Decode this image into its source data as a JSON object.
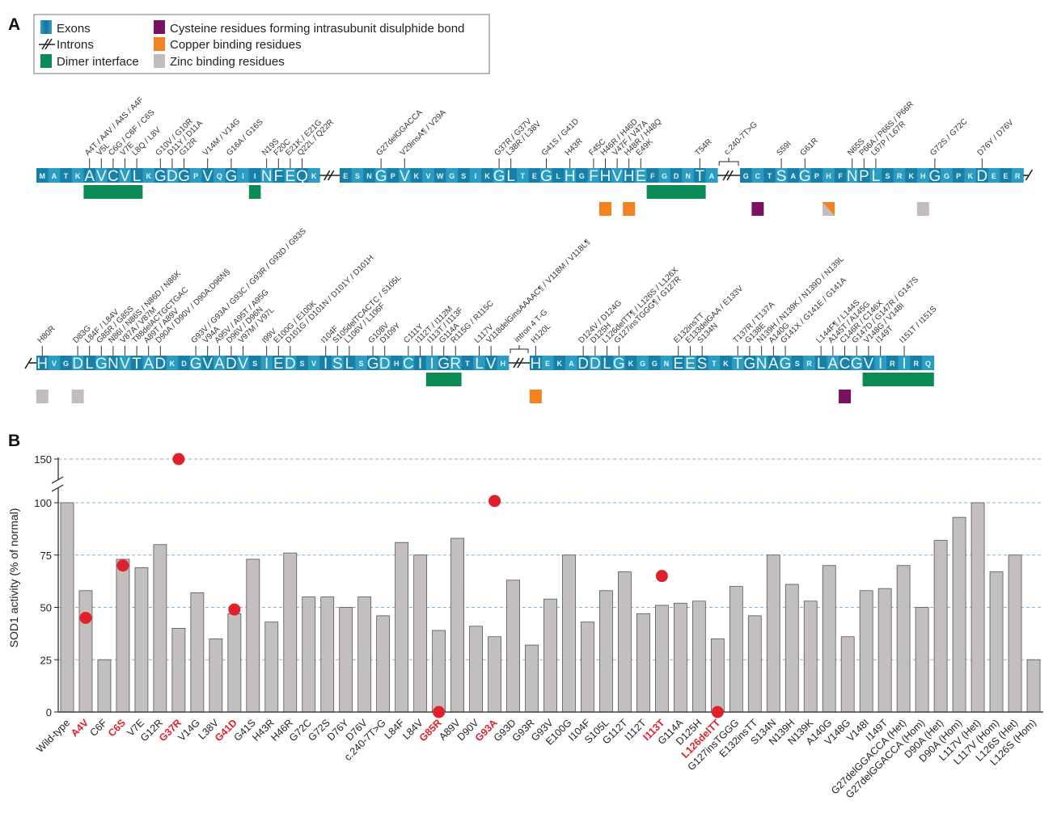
{
  "panel_a": {
    "label": "A",
    "legend": [
      {
        "label": "Exons",
        "color": "#1b86ad",
        "icon": "exon-swatch"
      },
      {
        "label": "Introns",
        "color": "#222222",
        "icon": "intron-break-icon"
      },
      {
        "label": "Dimer interface",
        "color": "#0a8a55",
        "icon": "dimer-swatch"
      },
      {
        "label": "Cysteine residues forming intrasubunit disulphide bond",
        "color": "#7a1060",
        "icon": "cysteine-swatch"
      },
      {
        "label": "Copper binding residues",
        "color": "#f58220",
        "icon": "copper-swatch"
      },
      {
        "label": "Zinc binding residues",
        "color": "#c3bcbc",
        "icon": "zinc-swatch"
      }
    ],
    "exons": [
      {
        "start": 0,
        "sequence": "MATKAVCVLKGDGPVQGIINFEQK",
        "annotations": [
          {
            "pos": 4,
            "text": "A4T / A4V / A4S / A4F"
          },
          {
            "pos": 5,
            "text": "V5L"
          },
          {
            "pos": 6,
            "text": "C6G / C6F / C6S"
          },
          {
            "pos": 7,
            "text": "V7E"
          },
          {
            "pos": 8,
            "text": "L8Q / L8V"
          },
          {
            "pos": 10,
            "text": "G10V / G10R"
          },
          {
            "pos": 11,
            "text": "D11Y / D11A"
          },
          {
            "pos": 12,
            "text": "G12R"
          },
          {
            "pos": 14,
            "text": "V14M / V14G"
          },
          {
            "pos": 16,
            "text": "G16A / G16S"
          },
          {
            "pos": 19,
            "text": "N19S"
          },
          {
            "pos": 20,
            "text": "F20C"
          },
          {
            "pos": 21,
            "text": "E21K / E21G"
          },
          {
            "pos": 22,
            "text": "Q22L / Q22R"
          }
        ]
      },
      {
        "start": 24,
        "sequence": "ESNGPVKVWGSIKGLTEGLHGFHVHEFGDNTA",
        "annotations": [
          {
            "pos": 27,
            "text": "G27delGGACCA"
          },
          {
            "pos": 29,
            "text": "V29insA¶ / V29A"
          },
          {
            "pos": 37,
            "text": "G37R / G37V"
          },
          {
            "pos": 38,
            "text": "L38R / L38V"
          },
          {
            "pos": 41,
            "text": "G41S / G41D"
          },
          {
            "pos": 43,
            "text": "H43R"
          },
          {
            "pos": 45,
            "text": "F45C"
          },
          {
            "pos": 46,
            "text": "H46R / H46D"
          },
          {
            "pos": 47,
            "text": "V47F / V47A"
          },
          {
            "pos": 48,
            "text": "H48R / H48Q"
          },
          {
            "pos": 49,
            "text": "E49K"
          },
          {
            "pos": 54,
            "text": "T54R"
          }
        ]
      },
      {
        "start": 56,
        "sequence": "GCTSAGPHFNPLSRKHGGPKDEER",
        "annotations": [
          {
            "pos": 59,
            "text": "S59I"
          },
          {
            "pos": 61,
            "text": "G61R"
          },
          {
            "pos": 65,
            "text": "N65S"
          },
          {
            "pos": 66,
            "text": "P66A / P66S / P66R"
          },
          {
            "pos": 67,
            "text": "L67P / L67R"
          },
          {
            "pos": 72,
            "text": "G72S / G72C"
          },
          {
            "pos": 76,
            "text": "D76Y / D76V"
          }
        ]
      },
      {
        "start": 80,
        "sequence": "HVGDLGNVTADKDGVADVSIEDSVISLSGDHCIIGRTLVH",
        "annotations": [
          {
            "pos": 80,
            "text": "H80R"
          },
          {
            "pos": 83,
            "text": "D83G"
          },
          {
            "pos": 84,
            "text": "L84F / L84V"
          },
          {
            "pos": 85,
            "text": "G85R / G85S"
          },
          {
            "pos": 86,
            "text": "N86I / N86S / N86D / N86K"
          },
          {
            "pos": 87,
            "text": "V87A / V87M"
          },
          {
            "pos": 88,
            "text": "T88delACTGCTGAC"
          },
          {
            "pos": 89,
            "text": "A89T / A89V"
          },
          {
            "pos": 90,
            "text": "D90A / D90V / D90A;D96N§"
          },
          {
            "pos": 93,
            "text": "G93V / G93A / G93C / G93R / G93D / G93S"
          },
          {
            "pos": 94,
            "text": "V94A"
          },
          {
            "pos": 95,
            "text": "A95V / A95T / A95G"
          },
          {
            "pos": 96,
            "text": "D96V / D96N"
          },
          {
            "pos": 97,
            "text": "V97M / V97L"
          },
          {
            "pos": 99,
            "text": "I99V"
          },
          {
            "pos": 100,
            "text": "E100G / E100K"
          },
          {
            "pos": 101,
            "text": "D101G / D101N / D101Y / D101H"
          },
          {
            "pos": 104,
            "text": "I104F"
          },
          {
            "pos": 105,
            "text": "S105delTCACTC / S105L"
          },
          {
            "pos": 106,
            "text": "L106V / L106F"
          },
          {
            "pos": 108,
            "text": "G108V"
          },
          {
            "pos": 109,
            "text": "D109Y"
          },
          {
            "pos": 111,
            "text": "C111Y"
          },
          {
            "pos": 112,
            "text": "I112T / I112M"
          },
          {
            "pos": 113,
            "text": "I113T / I113F"
          },
          {
            "pos": 114,
            "text": "G114A"
          },
          {
            "pos": 115,
            "text": "R115G / R115C"
          },
          {
            "pos": 117,
            "text": "L117V"
          },
          {
            "pos": 118,
            "text": "V118delGinsAAAAC¶ / V118M / V118L¶"
          }
        ]
      },
      {
        "start": 120,
        "sequence": "HEKADDLGKGGNEESTKTGNAGSRLACGVIRIRQ",
        "annotations": [
          {
            "pos": 120,
            "text": "H120L"
          },
          {
            "pos": 124,
            "text": "D124V / D124G"
          },
          {
            "pos": 125,
            "text": "D125H"
          },
          {
            "pos": 126,
            "text": "L126delTT¶ / L126S / L126X"
          },
          {
            "pos": 127,
            "text": "G127insTGGG¶ / G127R"
          },
          {
            "pos": 132,
            "text": "E132insTT"
          },
          {
            "pos": 133,
            "text": "E133delGAA / E133V"
          },
          {
            "pos": 134,
            "text": "S134N"
          },
          {
            "pos": 137,
            "text": "T137R / T137A"
          },
          {
            "pos": 138,
            "text": "G138E"
          },
          {
            "pos": 139,
            "text": "N139H / N139K / N139D / N139L"
          },
          {
            "pos": 140,
            "text": "A140G"
          },
          {
            "pos": 141,
            "text": "G141X / G141E / G141A"
          },
          {
            "pos": 144,
            "text": "L144F¶ / L144S"
          },
          {
            "pos": 145,
            "text": "A145T / A145G"
          },
          {
            "pos": 146,
            "text": "C146R / C146X"
          },
          {
            "pos": 147,
            "text": "G147D / G147R / G147S"
          },
          {
            "pos": 148,
            "text": "V148G / V148I"
          },
          {
            "pos": 149,
            "text": "I149T"
          },
          {
            "pos": 151,
            "text": "I151T / I151S"
          }
        ]
      }
    ],
    "introns": [
      {
        "after_exon": 1,
        "label": "c.240-7T>G"
      },
      {
        "after_exon": 3,
        "label": "intron 4 T-G"
      }
    ],
    "features": [
      {
        "type": "dimer",
        "from": 4,
        "to": 8
      },
      {
        "type": "dimer",
        "from": 18,
        "to": 18
      },
      {
        "type": "dimer",
        "from": 50,
        "to": 54
      },
      {
        "type": "dimer",
        "from": 113,
        "to": 115
      },
      {
        "type": "dimer",
        "from": 148,
        "to": 153
      },
      {
        "type": "copper",
        "pos": 46
      },
      {
        "type": "copper",
        "pos": 48
      },
      {
        "type": "cysteine",
        "pos": 57
      },
      {
        "type": "copper_zinc",
        "pos": 63
      },
      {
        "type": "zinc",
        "pos": 71
      },
      {
        "type": "zinc",
        "pos": 80
      },
      {
        "type": "zinc",
        "pos": 83
      },
      {
        "type": "copper",
        "pos": 120
      },
      {
        "type": "cysteine",
        "pos": 146
      }
    ]
  },
  "panel_b": {
    "label": "B"
  },
  "chart_data": {
    "type": "bar",
    "ylabel": "SOD1 activity (% of normal)",
    "yticks": [
      0,
      25,
      50,
      75,
      100,
      150
    ],
    "ylim": [
      0,
      150
    ],
    "y_axis_break": [
      100,
      150
    ],
    "grid": "dashed horizontal at ticks",
    "bar_color": "#c4bfbf",
    "highlight_color": "#e0202a",
    "categories": [
      "Wild-type",
      "A4V",
      "C6F",
      "C6S",
      "V7E",
      "G12R",
      "G37R",
      "V14G",
      "L38V",
      "G41D",
      "G41S",
      "H43R",
      "H46R",
      "G72C",
      "G72S",
      "D76Y",
      "D76V",
      "c.240-7T>G",
      "L84F",
      "L84V",
      "G85R",
      "A89V",
      "D90V",
      "G93A",
      "G93D",
      "G93R",
      "G93V",
      "E100G",
      "I104F",
      "S105L",
      "G112T",
      "I112T",
      "I113T",
      "G114A",
      "D125H",
      "L126delTT",
      "G127insTGGG",
      "E132insTT",
      "S134N",
      "N139H",
      "N139K",
      "A140G",
      "V148G",
      "V148I",
      "I149T",
      "G27delGGACCA (Het)",
      "G27delGGACCA (Hom)",
      "D90A (Het)",
      "D90A (Hom)",
      "L117V (Het)",
      "L117V (Hom)",
      "L126S (Het)",
      "L126S (Hom)"
    ],
    "values": [
      100,
      58,
      25,
      73,
      69,
      80,
      40,
      57,
      35,
      47,
      73,
      43,
      76,
      55,
      55,
      50,
      55,
      46,
      81,
      75,
      39,
      83,
      41,
      36,
      63,
      32,
      54,
      75,
      43,
      58,
      67,
      47,
      51,
      52,
      53,
      35,
      60,
      46,
      75,
      61,
      53,
      70,
      36,
      58,
      59,
      70,
      50,
      82,
      93,
      100,
      67,
      75,
      25
    ],
    "highlighted": [
      "A4V",
      "C6S",
      "G37R",
      "G41D",
      "G85R",
      "G93A",
      "I113T",
      "L126delTT"
    ],
    "points": [
      {
        "category": "A4V",
        "value": 45
      },
      {
        "category": "C6S",
        "value": 70
      },
      {
        "category": "G37R",
        "value": 150
      },
      {
        "category": "G41D",
        "value": 49
      },
      {
        "category": "G85R",
        "value": 0
      },
      {
        "category": "G93A",
        "value": 102
      },
      {
        "category": "I113T",
        "value": 65
      },
      {
        "category": "L126delTT",
        "value": 0
      }
    ]
  }
}
